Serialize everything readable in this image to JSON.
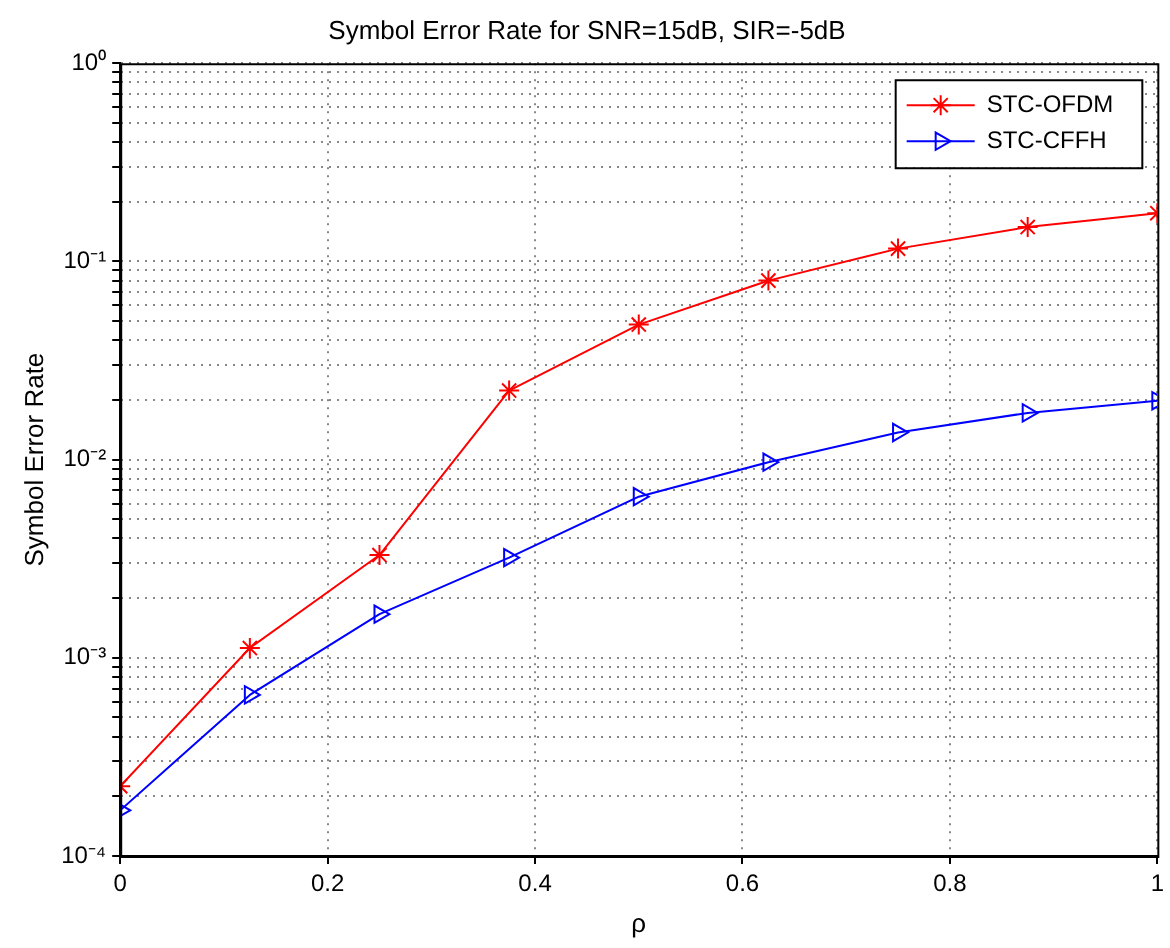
{
  "chart_data": {
    "type": "line",
    "title": "Symbol Error Rate for SNR=15dB, SIR=-5dB",
    "xlabel": "ρ",
    "ylabel": "Symbol Error Rate",
    "x": [
      0,
      0.125,
      0.25,
      0.375,
      0.5,
      0.625,
      0.75,
      0.875,
      1
    ],
    "series": [
      {
        "name": "STC-OFDM",
        "color": "#ff0000",
        "marker": "cross",
        "values": [
          0.000225,
          0.00112,
          0.0033,
          0.0223,
          0.048,
          0.08,
          0.116,
          0.149,
          0.175
        ]
      },
      {
        "name": "STC-CFFH",
        "color": "#0000ff",
        "marker": "triangle",
        "values": [
          0.00017,
          0.00065,
          0.00166,
          0.0032,
          0.0065,
          0.0097,
          0.0137,
          0.0172,
          0.0198
        ]
      }
    ],
    "log": "y",
    "xlim": [
      0,
      1
    ],
    "xticks": [
      0,
      0.2,
      0.4,
      0.6,
      0.8,
      1
    ],
    "ylim": [
      0.0001,
      1
    ],
    "yticks": [
      {
        "value": 0.0001,
        "label": "10⁻⁴"
      },
      {
        "value": 0.0002,
        "label": null
      },
      {
        "value": 0.0003,
        "label": null
      },
      {
        "value": 0.0004,
        "label": null
      },
      {
        "value": 0.0005,
        "label": null
      },
      {
        "value": 0.0006,
        "label": null
      },
      {
        "value": 0.0007,
        "label": null
      },
      {
        "value": 0.0008,
        "label": null
      },
      {
        "value": 0.0009,
        "label": null
      },
      {
        "value": 0.001,
        "label": "10⁻³"
      },
      {
        "value": 0.002,
        "label": null
      },
      {
        "value": 0.003,
        "label": null
      },
      {
        "value": 0.004,
        "label": null
      },
      {
        "value": 0.005,
        "label": null
      },
      {
        "value": 0.006,
        "label": null
      },
      {
        "value": 0.007,
        "label": null
      },
      {
        "value": 0.008,
        "label": null
      },
      {
        "value": 0.009,
        "label": null
      },
      {
        "value": 0.01,
        "label": "10⁻²"
      },
      {
        "value": 0.02,
        "label": null
      },
      {
        "value": 0.03,
        "label": null
      },
      {
        "value": 0.04,
        "label": null
      },
      {
        "value": 0.05,
        "label": null
      },
      {
        "value": 0.06,
        "label": null
      },
      {
        "value": 0.07,
        "label": null
      },
      {
        "value": 0.08,
        "label": null
      },
      {
        "value": 0.09,
        "label": null
      },
      {
        "value": 0.1,
        "label": "10⁻¹"
      },
      {
        "value": 0.2,
        "label": null
      },
      {
        "value": 0.3,
        "label": null
      },
      {
        "value": 0.4,
        "label": null
      },
      {
        "value": 0.5,
        "label": null
      },
      {
        "value": 0.6,
        "label": null
      },
      {
        "value": 0.7,
        "label": null
      },
      {
        "value": 0.8,
        "label": null
      },
      {
        "value": 0.9,
        "label": null
      },
      {
        "value": 1,
        "label": "10⁰"
      }
    ],
    "grid": true,
    "legend": "top right",
    "line_style": "solid"
  }
}
